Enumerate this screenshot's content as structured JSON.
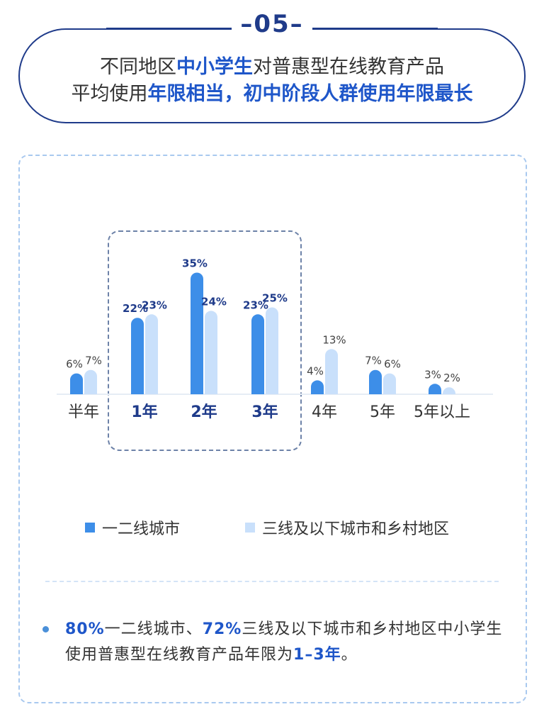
{
  "header": {
    "number": "–05–",
    "title_line1": [
      "不同地区",
      "中小学生",
      "对普惠型在线教育产品"
    ],
    "title_line2": [
      "平均使用",
      "年限相当，初中阶段人群使用年限最长"
    ]
  },
  "colors": {
    "dark_blue": "#1f3b8a",
    "series1": "#3d8ee8",
    "series2": "#c9e0fb",
    "highlight_text": "#1e56c9"
  },
  "chart_data": {
    "type": "bar",
    "categories": [
      "半年",
      "1年",
      "2年",
      "3年",
      "4年",
      "5年",
      "5年以上"
    ],
    "highlighted_categories": [
      "1年",
      "2年",
      "3年"
    ],
    "series": [
      {
        "name": "一二线城市",
        "values": [
          6,
          22,
          35,
          23,
          4,
          7,
          3
        ],
        "labels": [
          "6%",
          "22%",
          "35%",
          "23%",
          "4%",
          "7%",
          "3%"
        ]
      },
      {
        "name": "三线及以下城市和乡村地区",
        "values": [
          7,
          23,
          24,
          25,
          13,
          6,
          2
        ],
        "labels": [
          "7%",
          "23%",
          "24%",
          "25%",
          "13%",
          "6%",
          "2%"
        ]
      }
    ],
    "ylim": [
      0,
      40
    ],
    "legend_position": "bottom",
    "grid": false
  },
  "note": {
    "parts": [
      "80%",
      "一二线城市、",
      "72%",
      "三线及以下城市和乡村地区中小学生使用普惠型在线教育产品年限为",
      "1–3年",
      "。"
    ]
  }
}
